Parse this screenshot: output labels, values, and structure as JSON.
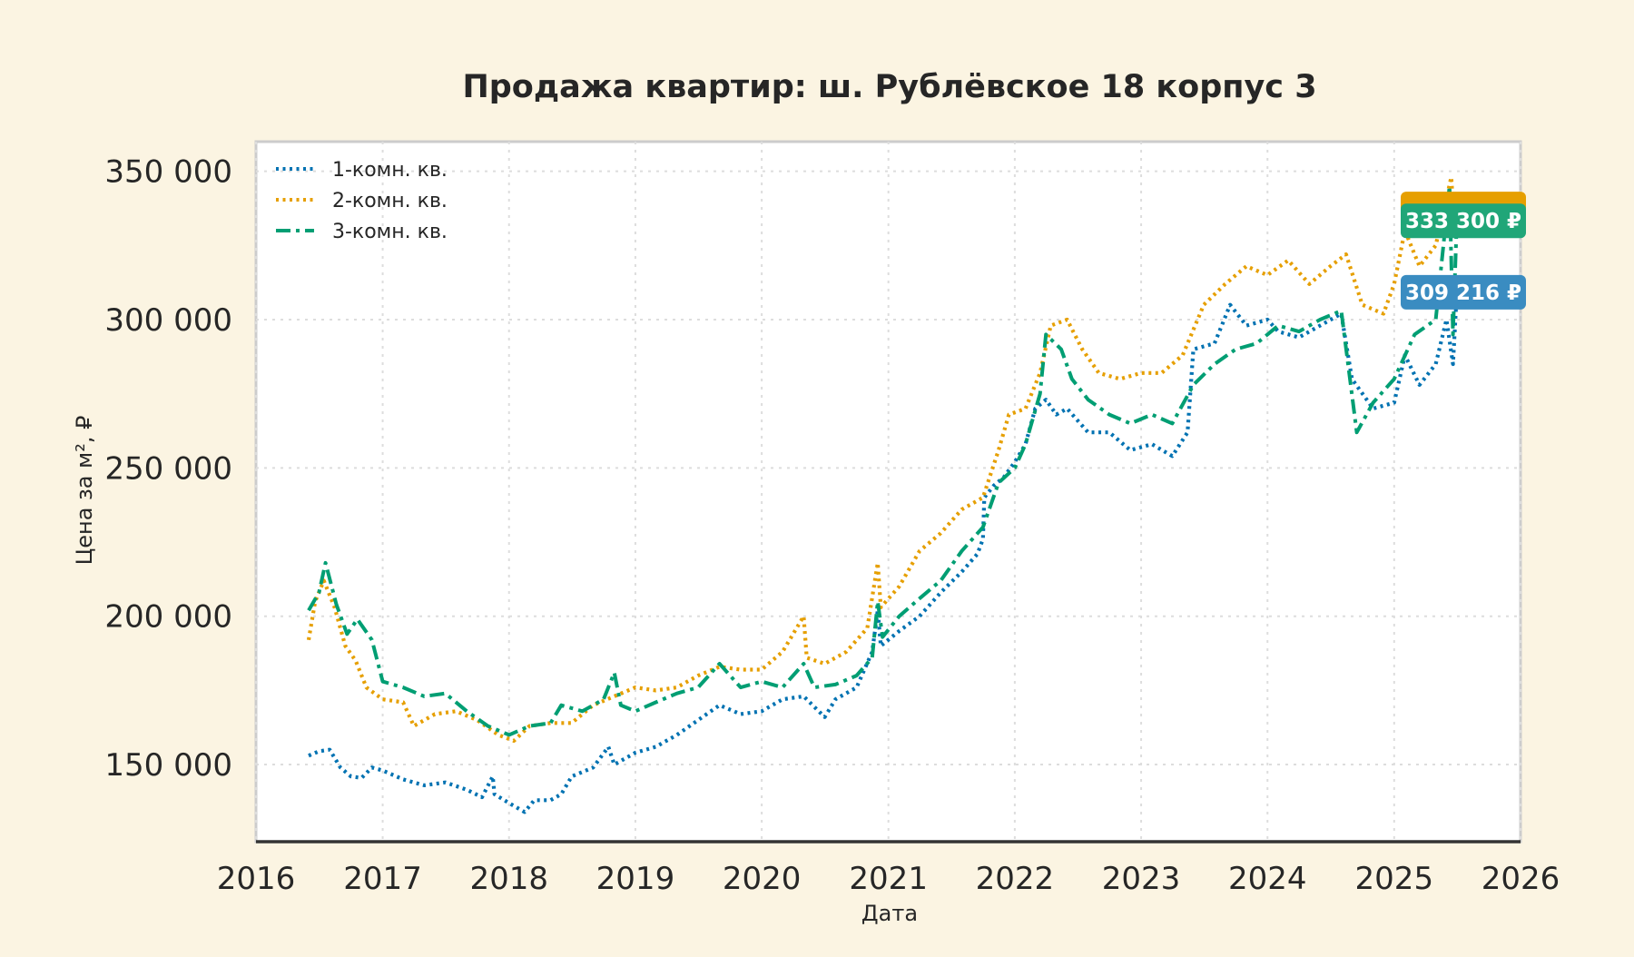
{
  "chart_data": {
    "type": "line",
    "title": "Продажа квартир: ш. Рублёвское 18 корпус 3",
    "xlabel": "Дата",
    "ylabel": "Цена за м², ₽",
    "x_ticks": [
      "2016",
      "2017",
      "2018",
      "2019",
      "2020",
      "2021",
      "2022",
      "2023",
      "2024",
      "2025",
      "2026"
    ],
    "y_ticks": [
      "150 000",
      "200 000",
      "250 000",
      "300 000",
      "350 000"
    ],
    "xlim": [
      "2016-01-01",
      "2026-01-01"
    ],
    "ylim": [
      124000,
      360000
    ],
    "grid": true,
    "legend_position": "top-left",
    "series": [
      {
        "name": "1-комн. кв.",
        "color": "#0072b2",
        "style": "dotted",
        "last_label": "309 216 ₽",
        "points": [
          [
            "2016-06-01",
            153000
          ],
          [
            "2016-07-01",
            154500
          ],
          [
            "2016-08-01",
            155000
          ],
          [
            "2016-09-01",
            149000
          ],
          [
            "2016-10-01",
            146000
          ],
          [
            "2016-11-01",
            145500
          ],
          [
            "2016-12-01",
            149000
          ],
          [
            "2017-01-01",
            148000
          ],
          [
            "2017-03-01",
            145000
          ],
          [
            "2017-05-01",
            143000
          ],
          [
            "2017-07-01",
            144000
          ],
          [
            "2017-09-01",
            141500
          ],
          [
            "2017-10-15",
            139000
          ],
          [
            "2017-11-15",
            146000
          ],
          [
            "2017-11-20",
            140000
          ],
          [
            "2018-01-01",
            137000
          ],
          [
            "2018-02-15",
            134000
          ],
          [
            "2018-03-15",
            138000
          ],
          [
            "2018-05-01",
            138000
          ],
          [
            "2018-06-01",
            140000
          ],
          [
            "2018-07-01",
            146000
          ],
          [
            "2018-09-01",
            149000
          ],
          [
            "2018-10-15",
            156000
          ],
          [
            "2018-11-01",
            150000
          ],
          [
            "2019-01-01",
            154000
          ],
          [
            "2019-03-01",
            156000
          ],
          [
            "2019-05-01",
            160000
          ],
          [
            "2019-07-01",
            165000
          ],
          [
            "2019-09-01",
            170000
          ],
          [
            "2019-11-01",
            167000
          ],
          [
            "2020-01-01",
            168000
          ],
          [
            "2020-03-01",
            172000
          ],
          [
            "2020-05-01",
            173000
          ],
          [
            "2020-07-01",
            166000
          ],
          [
            "2020-08-01",
            172000
          ],
          [
            "2020-10-01",
            176000
          ],
          [
            "2020-11-15",
            188000
          ],
          [
            "2020-12-01",
            202000
          ],
          [
            "2020-12-10",
            190000
          ],
          [
            "2021-02-01",
            195000
          ],
          [
            "2021-04-01",
            200000
          ],
          [
            "2021-06-01",
            208000
          ],
          [
            "2021-08-01",
            215000
          ],
          [
            "2021-09-15",
            221000
          ],
          [
            "2021-10-01",
            226000
          ],
          [
            "2021-10-05",
            240000
          ],
          [
            "2021-11-01",
            244000
          ],
          [
            "2021-12-01",
            247000
          ],
          [
            "2022-01-01",
            252000
          ],
          [
            "2022-02-01",
            258000
          ],
          [
            "2022-03-01",
            270000
          ],
          [
            "2022-04-01",
            273000
          ],
          [
            "2022-05-01",
            268000
          ],
          [
            "2022-06-01",
            270000
          ],
          [
            "2022-08-01",
            262000
          ],
          [
            "2022-10-01",
            262000
          ],
          [
            "2022-12-01",
            256000
          ],
          [
            "2023-02-01",
            258000
          ],
          [
            "2023-04-01",
            254000
          ],
          [
            "2023-05-15",
            262000
          ],
          [
            "2023-06-01",
            290000
          ],
          [
            "2023-08-01",
            292000
          ],
          [
            "2023-09-15",
            305000
          ],
          [
            "2023-11-01",
            298000
          ],
          [
            "2024-01-01",
            300000
          ],
          [
            "2024-02-01",
            296000
          ],
          [
            "2024-04-01",
            294000
          ],
          [
            "2024-06-01",
            298000
          ],
          [
            "2024-08-01",
            302000
          ],
          [
            "2024-09-01",
            280000
          ],
          [
            "2024-11-01",
            270000
          ],
          [
            "2025-01-01",
            272000
          ],
          [
            "2025-02-01",
            288000
          ],
          [
            "2025-03-15",
            278000
          ],
          [
            "2025-05-01",
            285000
          ],
          [
            "2025-06-01",
            300000
          ],
          [
            "2025-06-20",
            285000
          ],
          [
            "2025-07-01",
            309216
          ]
        ]
      },
      {
        "name": "2-комн. кв.",
        "color": "#e69f00",
        "style": "dotted",
        "last_label": "",
        "points": [
          [
            "2016-06-01",
            192000
          ],
          [
            "2016-06-20",
            205000
          ],
          [
            "2016-07-15",
            212000
          ],
          [
            "2016-08-15",
            203000
          ],
          [
            "2016-09-15",
            190000
          ],
          [
            "2016-10-15",
            185000
          ],
          [
            "2016-11-15",
            176000
          ],
          [
            "2017-01-01",
            172000
          ],
          [
            "2017-03-01",
            171000
          ],
          [
            "2017-04-01",
            163000
          ],
          [
            "2017-06-01",
            167000
          ],
          [
            "2017-08-01",
            168000
          ],
          [
            "2017-10-01",
            165000
          ],
          [
            "2017-12-01",
            160000
          ],
          [
            "2018-01-15",
            158000
          ],
          [
            "2018-03-01",
            163000
          ],
          [
            "2018-05-01",
            164000
          ],
          [
            "2018-07-01",
            164000
          ],
          [
            "2018-09-01",
            170000
          ],
          [
            "2018-11-01",
            173000
          ],
          [
            "2019-01-01",
            176000
          ],
          [
            "2019-03-01",
            175000
          ],
          [
            "2019-05-01",
            176000
          ],
          [
            "2019-07-01",
            180000
          ],
          [
            "2019-09-01",
            183000
          ],
          [
            "2019-11-01",
            182000
          ],
          [
            "2020-01-01",
            182000
          ],
          [
            "2020-03-01",
            188000
          ],
          [
            "2020-05-01",
            200000
          ],
          [
            "2020-05-10",
            186000
          ],
          [
            "2020-07-01",
            184000
          ],
          [
            "2020-09-01",
            188000
          ],
          [
            "2020-11-01",
            196000
          ],
          [
            "2020-12-01",
            218000
          ],
          [
            "2020-12-10",
            203000
          ],
          [
            "2021-02-01",
            210000
          ],
          [
            "2021-04-01",
            222000
          ],
          [
            "2021-06-01",
            228000
          ],
          [
            "2021-08-01",
            236000
          ],
          [
            "2021-10-01",
            240000
          ],
          [
            "2021-11-15",
            256000
          ],
          [
            "2021-12-15",
            268000
          ],
          [
            "2022-02-01",
            270000
          ],
          [
            "2022-03-15",
            282000
          ],
          [
            "2022-04-15",
            298000
          ],
          [
            "2022-06-01",
            300000
          ],
          [
            "2022-07-15",
            290000
          ],
          [
            "2022-09-01",
            282000
          ],
          [
            "2022-11-01",
            280000
          ],
          [
            "2023-01-01",
            282000
          ],
          [
            "2023-03-01",
            282000
          ],
          [
            "2023-05-01",
            288000
          ],
          [
            "2023-07-01",
            305000
          ],
          [
            "2023-09-01",
            312000
          ],
          [
            "2023-11-01",
            318000
          ],
          [
            "2024-01-01",
            315000
          ],
          [
            "2024-03-01",
            320000
          ],
          [
            "2024-05-01",
            312000
          ],
          [
            "2024-07-01",
            318000
          ],
          [
            "2024-08-15",
            322000
          ],
          [
            "2024-10-01",
            305000
          ],
          [
            "2024-12-01",
            302000
          ],
          [
            "2025-01-01",
            312000
          ],
          [
            "2025-02-01",
            330000
          ],
          [
            "2025-03-15",
            318000
          ],
          [
            "2025-05-01",
            325000
          ],
          [
            "2025-06-15",
            348000
          ],
          [
            "2025-06-25",
            330000
          ],
          [
            "2025-07-01",
            337000
          ]
        ]
      },
      {
        "name": "3-комн. кв.",
        "color": "#009e73",
        "style": "dashdot",
        "last_label": "333 300 ₽",
        "points": [
          [
            "2016-06-01",
            202000
          ],
          [
            "2016-07-01",
            208000
          ],
          [
            "2016-07-20",
            218000
          ],
          [
            "2016-08-20",
            204000
          ],
          [
            "2016-09-20",
            194000
          ],
          [
            "2016-10-20",
            199000
          ],
          [
            "2016-12-01",
            192000
          ],
          [
            "2017-01-01",
            178000
          ],
          [
            "2017-03-01",
            176000
          ],
          [
            "2017-05-01",
            173000
          ],
          [
            "2017-07-01",
            174000
          ],
          [
            "2017-09-01",
            168000
          ],
          [
            "2017-11-01",
            163000
          ],
          [
            "2018-01-01",
            160000
          ],
          [
            "2018-03-01",
            163000
          ],
          [
            "2018-05-01",
            164000
          ],
          [
            "2018-06-01",
            170000
          ],
          [
            "2018-08-01",
            168000
          ],
          [
            "2018-10-01",
            172000
          ],
          [
            "2018-11-01",
            181000
          ],
          [
            "2018-11-20",
            170000
          ],
          [
            "2019-01-01",
            168000
          ],
          [
            "2019-03-01",
            171000
          ],
          [
            "2019-05-01",
            174000
          ],
          [
            "2019-07-01",
            176000
          ],
          [
            "2019-09-01",
            184000
          ],
          [
            "2019-11-01",
            176000
          ],
          [
            "2020-01-01",
            178000
          ],
          [
            "2020-03-01",
            176000
          ],
          [
            "2020-05-01",
            184000
          ],
          [
            "2020-06-01",
            176000
          ],
          [
            "2020-08-01",
            177000
          ],
          [
            "2020-10-01",
            180000
          ],
          [
            "2020-11-15",
            186000
          ],
          [
            "2020-12-01",
            205000
          ],
          [
            "2020-12-15",
            193000
          ],
          [
            "2021-02-01",
            200000
          ],
          [
            "2021-04-01",
            206000
          ],
          [
            "2021-06-01",
            212000
          ],
          [
            "2021-08-01",
            222000
          ],
          [
            "2021-10-01",
            230000
          ],
          [
            "2021-11-15",
            245000
          ],
          [
            "2022-01-01",
            250000
          ],
          [
            "2022-02-01",
            258000
          ],
          [
            "2022-03-15",
            275000
          ],
          [
            "2022-04-01",
            295000
          ],
          [
            "2022-05-15",
            290000
          ],
          [
            "2022-06-15",
            280000
          ],
          [
            "2022-08-01",
            273000
          ],
          [
            "2022-10-01",
            268000
          ],
          [
            "2022-12-01",
            265000
          ],
          [
            "2023-02-01",
            268000
          ],
          [
            "2023-04-01",
            265000
          ],
          [
            "2023-06-01",
            278000
          ],
          [
            "2023-08-01",
            285000
          ],
          [
            "2023-10-01",
            290000
          ],
          [
            "2023-12-01",
            292000
          ],
          [
            "2024-02-01",
            298000
          ],
          [
            "2024-04-01",
            296000
          ],
          [
            "2024-06-01",
            300000
          ],
          [
            "2024-08-01",
            303000
          ],
          [
            "2024-09-15",
            262000
          ],
          [
            "2024-11-01",
            272000
          ],
          [
            "2025-01-01",
            280000
          ],
          [
            "2025-03-01",
            295000
          ],
          [
            "2025-05-01",
            300000
          ],
          [
            "2025-06-10",
            345000
          ],
          [
            "2025-06-20",
            295000
          ],
          [
            "2025-07-01",
            333300
          ]
        ]
      }
    ]
  }
}
